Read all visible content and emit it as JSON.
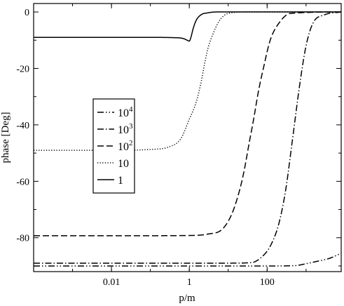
{
  "chart_data": {
    "type": "line",
    "xlabel": "p/m",
    "ylabel": "phase [Deg]",
    "xscale": "log",
    "xlim": [
      0.0001,
      8000
    ],
    "ylim": [
      -92,
      3
    ],
    "x_ticks": [
      {
        "value": 0.01,
        "label": "0.01"
      },
      {
        "value": 1,
        "label": "1"
      },
      {
        "value": 100,
        "label": "100"
      }
    ],
    "y_ticks": [
      {
        "value": 0,
        "label": "0"
      },
      {
        "value": -20,
        "label": "-20"
      },
      {
        "value": -40,
        "label": "-40"
      },
      {
        "value": -60,
        "label": "-60"
      },
      {
        "value": -80,
        "label": "-80"
      }
    ],
    "grid": false,
    "legend_position": "center-left",
    "series": [
      {
        "name": "10^4",
        "name_base": "10",
        "name_exp": "4",
        "style": "dash-dot-dot",
        "x": [
          0.0001,
          0.01,
          1,
          100,
          500,
          1000,
          2000,
          4000,
          8000
        ],
        "y": [
          -90,
          -90,
          -90,
          -90,
          -89.9,
          -89.2,
          -88.3,
          -87.3,
          -85.5
        ]
      },
      {
        "name": "10^3",
        "name_base": "10",
        "name_exp": "3",
        "style": "dash-dot",
        "x": [
          0.0001,
          0.01,
          1,
          10,
          40,
          70,
          120,
          200,
          300,
          450,
          700,
          1000,
          1500,
          3000,
          8000
        ],
        "y": [
          -89,
          -89,
          -89,
          -89,
          -88.8,
          -87,
          -83,
          -75,
          -63,
          -45,
          -25,
          -12,
          -4,
          -1,
          0
        ]
      },
      {
        "name": "10^2",
        "name_base": "10",
        "name_exp": "2",
        "style": "dashed",
        "x": [
          0.0001,
          0.01,
          1,
          3,
          7,
          12,
          18,
          25,
          35,
          45,
          60,
          80,
          120,
          200,
          400,
          8000
        ],
        "y": [
          -79.3,
          -79.3,
          -79.2,
          -78.7,
          -77,
          -72,
          -65,
          -57,
          -46,
          -38,
          -28,
          -20,
          -10,
          -4,
          -0.5,
          0
        ]
      },
      {
        "name": "10",
        "style": "dotted",
        "x": [
          0.0001,
          0.01,
          0.1,
          0.3,
          0.6,
          1,
          1.5,
          2,
          2.5,
          3,
          4,
          6,
          10,
          30,
          100,
          8000
        ],
        "y": [
          -49,
          -49,
          -48.7,
          -47.8,
          -45,
          -38,
          -32,
          -25,
          -18,
          -13,
          -8,
          -3,
          -0.5,
          0,
          0,
          0
        ]
      },
      {
        "name": "1",
        "style": "solid",
        "x": [
          0.0001,
          0.01,
          0.1,
          0.4,
          0.7,
          0.85,
          1,
          1.1,
          1.25,
          1.5,
          2,
          3,
          5,
          10,
          100,
          8000
        ],
        "y": [
          -9,
          -9,
          -9,
          -9.1,
          -9.4,
          -9.9,
          -10.3,
          -9,
          -6,
          -3,
          -1,
          -0.3,
          0,
          0,
          0,
          0
        ]
      }
    ]
  }
}
